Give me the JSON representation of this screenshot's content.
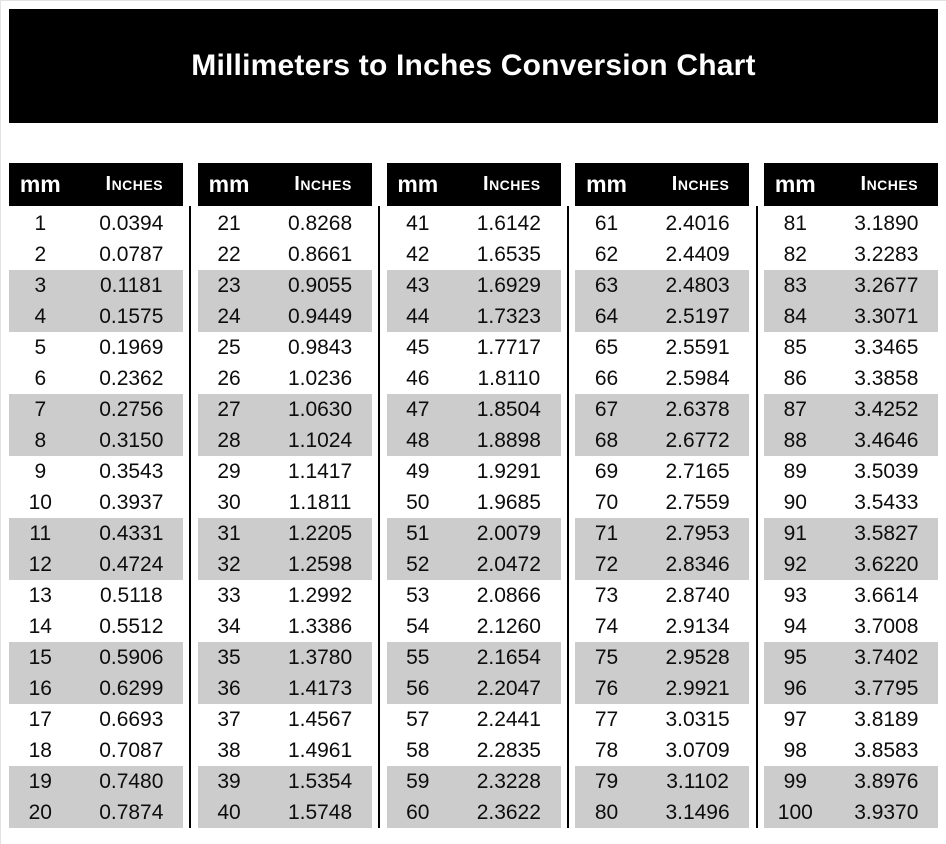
{
  "title": "Millimeters to Inches Conversion Chart",
  "column_headers": {
    "mm": "mm",
    "inches": "Inches"
  },
  "colors": {
    "banner_bg": "#000000",
    "banner_text": "#ffffff",
    "header_bg": "#000000",
    "header_text": "#ffffff",
    "stripe": "#cccccc",
    "divider": "#000000",
    "page_bg": "#ffffff",
    "text": "#0d0d0d"
  },
  "chart_data": {
    "type": "table",
    "title": "Millimeters to Inches Conversion Chart",
    "columns": [
      "mm",
      "Inches"
    ],
    "layout": "5 side-by-side tables of 20 rows, paired-row gray striping, black vertical dividers between tables",
    "tables": [
      {
        "rows": [
          [
            "1",
            "0.0394"
          ],
          [
            "2",
            "0.0787"
          ],
          [
            "3",
            "0.1181"
          ],
          [
            "4",
            "0.1575"
          ],
          [
            "5",
            "0.1969"
          ],
          [
            "6",
            "0.2362"
          ],
          [
            "7",
            "0.2756"
          ],
          [
            "8",
            "0.3150"
          ],
          [
            "9",
            "0.3543"
          ],
          [
            "10",
            "0.3937"
          ],
          [
            "11",
            "0.4331"
          ],
          [
            "12",
            "0.4724"
          ],
          [
            "13",
            "0.5118"
          ],
          [
            "14",
            "0.5512"
          ],
          [
            "15",
            "0.5906"
          ],
          [
            "16",
            "0.6299"
          ],
          [
            "17",
            "0.6693"
          ],
          [
            "18",
            "0.7087"
          ],
          [
            "19",
            "0.7480"
          ],
          [
            "20",
            "0.7874"
          ]
        ]
      },
      {
        "rows": [
          [
            "21",
            "0.8268"
          ],
          [
            "22",
            "0.8661"
          ],
          [
            "23",
            "0.9055"
          ],
          [
            "24",
            "0.9449"
          ],
          [
            "25",
            "0.9843"
          ],
          [
            "26",
            "1.0236"
          ],
          [
            "27",
            "1.0630"
          ],
          [
            "28",
            "1.1024"
          ],
          [
            "29",
            "1.1417"
          ],
          [
            "30",
            "1.1811"
          ],
          [
            "31",
            "1.2205"
          ],
          [
            "32",
            "1.2598"
          ],
          [
            "33",
            "1.2992"
          ],
          [
            "34",
            "1.3386"
          ],
          [
            "35",
            "1.3780"
          ],
          [
            "36",
            "1.4173"
          ],
          [
            "37",
            "1.4567"
          ],
          [
            "38",
            "1.4961"
          ],
          [
            "39",
            "1.5354"
          ],
          [
            "40",
            "1.5748"
          ]
        ]
      },
      {
        "rows": [
          [
            "41",
            "1.6142"
          ],
          [
            "42",
            "1.6535"
          ],
          [
            "43",
            "1.6929"
          ],
          [
            "44",
            "1.7323"
          ],
          [
            "45",
            "1.7717"
          ],
          [
            "46",
            "1.8110"
          ],
          [
            "47",
            "1.8504"
          ],
          [
            "48",
            "1.8898"
          ],
          [
            "49",
            "1.9291"
          ],
          [
            "50",
            "1.9685"
          ],
          [
            "51",
            "2.0079"
          ],
          [
            "52",
            "2.0472"
          ],
          [
            "53",
            "2.0866"
          ],
          [
            "54",
            "2.1260"
          ],
          [
            "55",
            "2.1654"
          ],
          [
            "56",
            "2.2047"
          ],
          [
            "57",
            "2.2441"
          ],
          [
            "58",
            "2.2835"
          ],
          [
            "59",
            "2.3228"
          ],
          [
            "60",
            "2.3622"
          ]
        ]
      },
      {
        "rows": [
          [
            "61",
            "2.4016"
          ],
          [
            "62",
            "2.4409"
          ],
          [
            "63",
            "2.4803"
          ],
          [
            "64",
            "2.5197"
          ],
          [
            "65",
            "2.5591"
          ],
          [
            "66",
            "2.5984"
          ],
          [
            "67",
            "2.6378"
          ],
          [
            "68",
            "2.6772"
          ],
          [
            "69",
            "2.7165"
          ],
          [
            "70",
            "2.7559"
          ],
          [
            "71",
            "2.7953"
          ],
          [
            "72",
            "2.8346"
          ],
          [
            "73",
            "2.8740"
          ],
          [
            "74",
            "2.9134"
          ],
          [
            "75",
            "2.9528"
          ],
          [
            "76",
            "2.9921"
          ],
          [
            "77",
            "3.0315"
          ],
          [
            "78",
            "3.0709"
          ],
          [
            "79",
            "3.1102"
          ],
          [
            "80",
            "3.1496"
          ]
        ]
      },
      {
        "rows": [
          [
            "81",
            "3.1890"
          ],
          [
            "82",
            "3.2283"
          ],
          [
            "83",
            "3.2677"
          ],
          [
            "84",
            "3.3071"
          ],
          [
            "85",
            "3.3465"
          ],
          [
            "86",
            "3.3858"
          ],
          [
            "87",
            "3.4252"
          ],
          [
            "88",
            "3.4646"
          ],
          [
            "89",
            "3.5039"
          ],
          [
            "90",
            "3.5433"
          ],
          [
            "91",
            "3.5827"
          ],
          [
            "92",
            "3.6220"
          ],
          [
            "93",
            "3.6614"
          ],
          [
            "94",
            "3.7008"
          ],
          [
            "95",
            "3.7402"
          ],
          [
            "96",
            "3.7795"
          ],
          [
            "97",
            "3.8189"
          ],
          [
            "98",
            "3.8583"
          ],
          [
            "99",
            "3.8976"
          ],
          [
            "100",
            "3.9370"
          ]
        ]
      }
    ]
  }
}
